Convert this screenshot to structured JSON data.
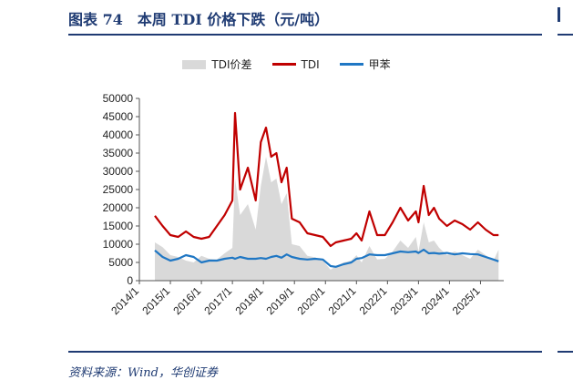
{
  "figure": {
    "title": "图表 74　本周 TDI 价格下跌（元/吨）",
    "source": "资料来源：Wind，华创证券"
  },
  "chart_data": {
    "type": "line",
    "title": "",
    "xlabel": "",
    "ylabel": "",
    "ylim": [
      0,
      50000
    ],
    "yticks": [
      "0",
      "5000",
      "10000",
      "15000",
      "20000",
      "25000",
      "30000",
      "35000",
      "40000",
      "45000",
      "50000"
    ],
    "xticks": [
      "2014/1",
      "2015/1",
      "2016/1",
      "2017/1",
      "2018/1",
      "2019/1",
      "2020/1",
      "2021/1",
      "2022/1",
      "2023/1",
      "2024/1",
      "2025/1"
    ],
    "legend_position": "top-center",
    "grid": false,
    "x": [
      "2014/7",
      "2014/10",
      "2015/1",
      "2015/4",
      "2015/7",
      "2015/10",
      "2016/1",
      "2016/4",
      "2016/7",
      "2016/10",
      "2017/1",
      "2017/2",
      "2017/4",
      "2017/7",
      "2017/10",
      "2017/12",
      "2018/2",
      "2018/4",
      "2018/6",
      "2018/8",
      "2018/10",
      "2018/12",
      "2019/3",
      "2019/6",
      "2019/9",
      "2019/12",
      "2020/3",
      "2020/5",
      "2020/8",
      "2020/11",
      "2021/1",
      "2021/3",
      "2021/6",
      "2021/9",
      "2021/12",
      "2022/3",
      "2022/6",
      "2022/9",
      "2022/12",
      "2023/1",
      "2023/3",
      "2023/5",
      "2023/7",
      "2023/9",
      "2023/12",
      "2024/3",
      "2024/6",
      "2024/9",
      "2024/12",
      "2025/3",
      "2025/6",
      "2025/8"
    ],
    "series": [
      {
        "name": "TDI价差",
        "color": "#d9d9d9",
        "style": "area",
        "values": [
          10500,
          9200,
          7000,
          6500,
          5500,
          5000,
          6800,
          6000,
          5800,
          7500,
          9000,
          28000,
          18000,
          21000,
          14000,
          26000,
          34000,
          27000,
          28000,
          21000,
          24000,
          10000,
          9500,
          6800,
          6400,
          5500,
          3000,
          4000,
          5000,
          5500,
          7000,
          5000,
          9500,
          5800,
          6000,
          8000,
          11000,
          9000,
          12000,
          8000,
          16000,
          10500,
          11000,
          9000,
          7000,
          8000,
          7000,
          6000,
          8500,
          7000,
          5500,
          8500
        ]
      },
      {
        "name": "TDI",
        "color": "#c00000",
        "style": "line",
        "values": [
          17800,
          15000,
          12500,
          12000,
          13500,
          12000,
          11500,
          12000,
          15000,
          18000,
          22000,
          46000,
          25000,
          31000,
          22000,
          38000,
          42000,
          34000,
          35000,
          27000,
          31000,
          17000,
          16000,
          13000,
          12500,
          12000,
          9500,
          10500,
          11000,
          11500,
          13000,
          11000,
          19000,
          12500,
          12500,
          16000,
          20000,
          16500,
          19000,
          16000,
          26000,
          18000,
          20000,
          17000,
          15000,
          16500,
          15500,
          14000,
          16000,
          14000,
          12500,
          12500
        ]
      },
      {
        "name": "甲苯",
        "color": "#1f77c4",
        "style": "line",
        "values": [
          8300,
          6500,
          5500,
          6000,
          7000,
          6500,
          5000,
          5500,
          5500,
          6000,
          6300,
          6000,
          6500,
          6000,
          6000,
          6200,
          6000,
          6500,
          6800,
          6300,
          7200,
          6500,
          6000,
          5800,
          6000,
          5800,
          4000,
          3800,
          4500,
          5000,
          6000,
          6200,
          7200,
          7000,
          7000,
          7500,
          8000,
          7800,
          8000,
          7600,
          8500,
          7500,
          7600,
          7400,
          7600,
          7200,
          7500,
          7300,
          7200,
          6500,
          5800,
          5300
        ]
      }
    ]
  }
}
